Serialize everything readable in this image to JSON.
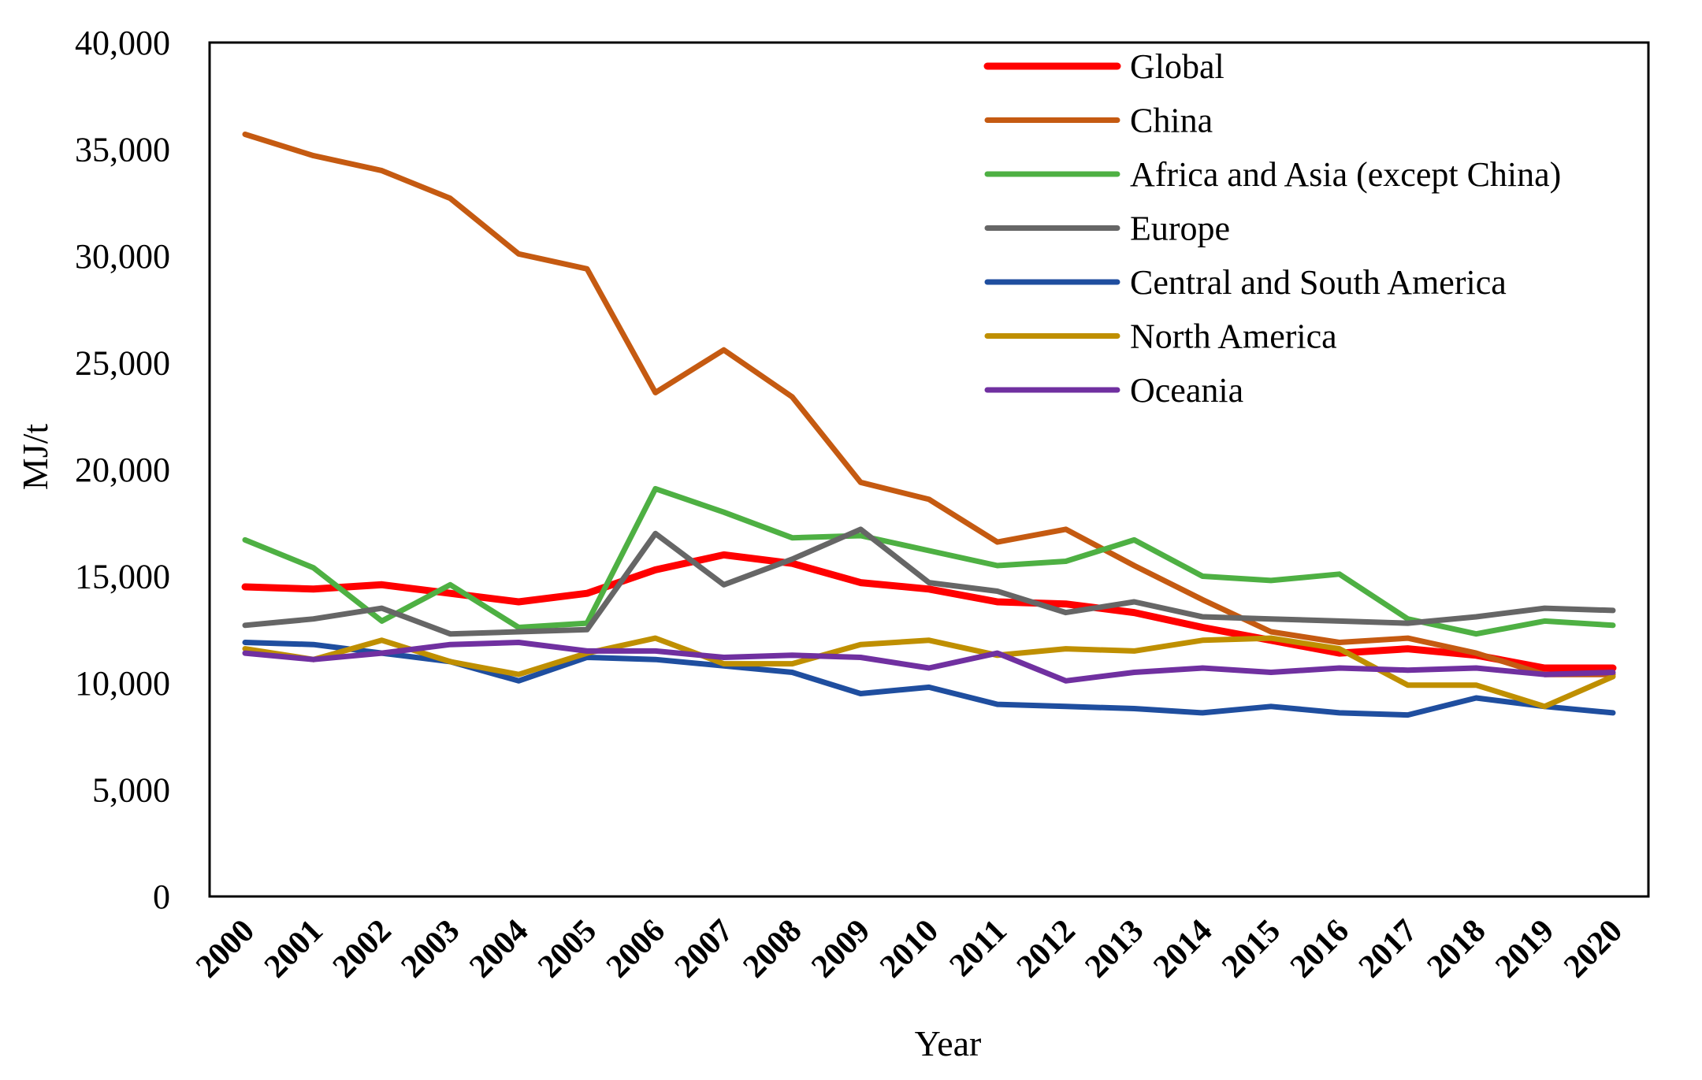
{
  "chart_data": {
    "type": "line",
    "title": "",
    "xlabel": "Year",
    "ylabel": "MJ/t",
    "ylim": [
      0,
      40000
    ],
    "yticks": [
      0,
      5000,
      10000,
      15000,
      20000,
      25000,
      30000,
      35000,
      40000
    ],
    "ytick_labels": [
      "0",
      "5,000",
      "10,000",
      "15,000",
      "20,000",
      "25,000",
      "30,000",
      "35,000",
      "40,000"
    ],
    "categories": [
      "2000",
      "2001",
      "2002",
      "2003",
      "2004",
      "2005",
      "2006",
      "2007",
      "2008",
      "2009",
      "2010",
      "2011",
      "2012",
      "2013",
      "2014",
      "2015",
      "2016",
      "2017",
      "2018",
      "2019",
      "2020"
    ],
    "grid": false,
    "legend_position": "top-right",
    "series": [
      {
        "name": "Global",
        "color": "#ff0000",
        "values": [
          14500,
          14400,
          14600,
          14200,
          13800,
          14200,
          15300,
          16000,
          15600,
          14700,
          14400,
          13800,
          13700,
          13300,
          12600,
          12000,
          11400,
          11600,
          11300,
          10700,
          10700
        ]
      },
      {
        "name": "China",
        "color": "#c55a11",
        "values": [
          35700,
          34700,
          34000,
          32700,
          30100,
          29400,
          23600,
          25600,
          23400,
          19400,
          18600,
          16600,
          17200,
          15500,
          13900,
          12400,
          11900,
          12100,
          11400,
          10400,
          10400
        ]
      },
      {
        "name": "Africa and Asia (except China)",
        "color": "#4eb043",
        "values": [
          16700,
          15400,
          12900,
          14600,
          12600,
          12800,
          19100,
          18000,
          16800,
          16900,
          16200,
          15500,
          15700,
          16700,
          15000,
          14800,
          15100,
          13000,
          12300,
          12900,
          12700
        ]
      },
      {
        "name": "Europe",
        "color": "#666666",
        "values": [
          12700,
          13000,
          13500,
          12300,
          12400,
          12500,
          17000,
          14600,
          15800,
          17200,
          14700,
          14300,
          13300,
          13800,
          13100,
          13000,
          12900,
          12800,
          13100,
          13500,
          13400
        ]
      },
      {
        "name": "Central and South America",
        "color": "#1f4e9f",
        "values": [
          11900,
          11800,
          11400,
          11000,
          10100,
          11200,
          11100,
          10800,
          10500,
          9500,
          9800,
          9000,
          8900,
          8800,
          8600,
          8900,
          8600,
          8500,
          9300,
          8900,
          8600
        ]
      },
      {
        "name": "North America",
        "color": "#bf8f00",
        "values": [
          11600,
          11100,
          12000,
          11000,
          10400,
          11400,
          12100,
          10900,
          10900,
          11800,
          12000,
          11300,
          11600,
          11500,
          12000,
          12100,
          11600,
          9900,
          9900,
          8900,
          10300
        ]
      },
      {
        "name": "Oceania",
        "color": "#7030a0",
        "values": [
          11400,
          11100,
          11400,
          11800,
          11900,
          11500,
          11500,
          11200,
          11300,
          11200,
          10700,
          11400,
          10100,
          10500,
          10700,
          10500,
          10700,
          10600,
          10700,
          10400,
          10500
        ]
      }
    ]
  }
}
